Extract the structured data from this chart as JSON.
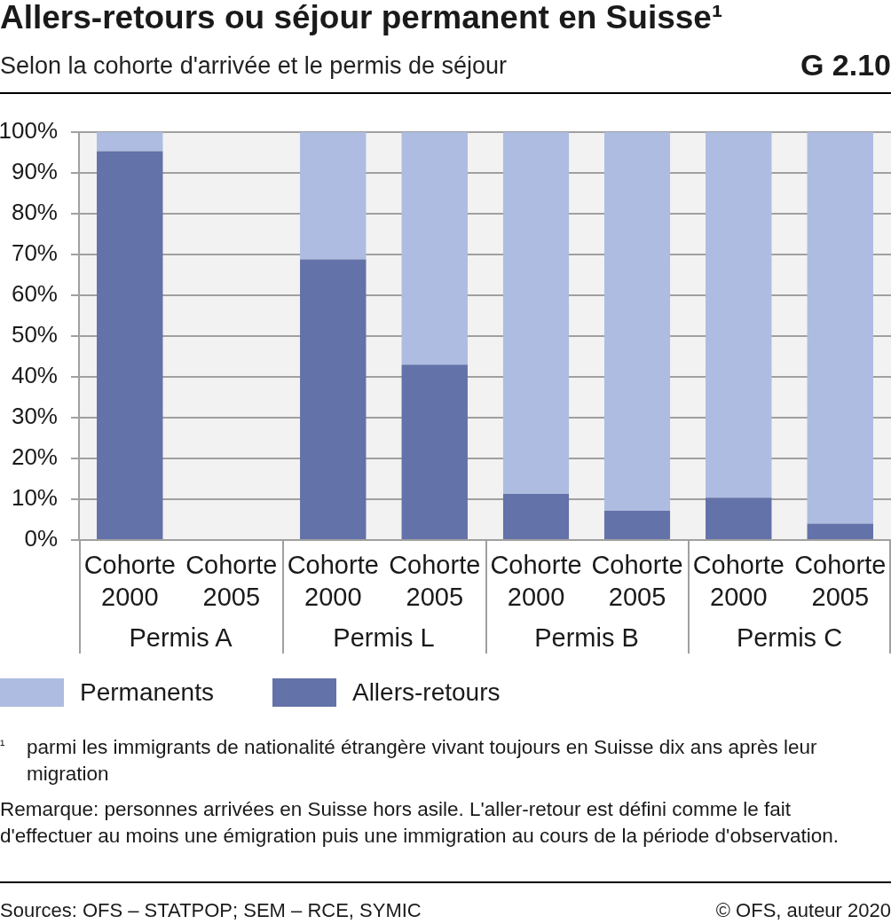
{
  "chart_data": [
    {
      "type": "bar",
      "title": "Allers-retours ou séjour permanent en Suisse¹",
      "subtitle": "Selon la cohorte d'arrivée et le permis de séjour",
      "xlabel": "Permis A",
      "categories": [
        "Cohorte 2000",
        "Cohorte 2005"
      ],
      "stacked": true,
      "series": [
        {
          "name": "Allers-retours",
          "color": "#6372a8",
          "values": [
            95.3,
            null
          ]
        },
        {
          "name": "Permanents",
          "color": "#aebce1",
          "values": [
            4.7,
            null
          ]
        }
      ],
      "ylim": [
        0,
        100
      ],
      "yticks": [
        {
          "value": 0,
          "label": "0%"
        },
        {
          "value": 10,
          "label": "10%"
        },
        {
          "value": 20,
          "label": "20%"
        },
        {
          "value": 30,
          "label": "30%"
        },
        {
          "value": 40,
          "label": "40%"
        },
        {
          "value": 50,
          "label": "50%"
        },
        {
          "value": 60,
          "label": "60%"
        },
        {
          "value": 70,
          "label": "70%"
        },
        {
          "value": 80,
          "label": "80%"
        },
        {
          "value": 90,
          "label": "90%"
        },
        {
          "value": 100,
          "label": "100%"
        }
      ],
      "grid": "y",
      "legend": "bottom",
      "annotations": [
        "G 2.10",
        "¹ parmi les immigrants de nationalité étrangère vivant toujours en Suisse dix ans après leur migration",
        "Remarque: personnes arrivées en Suisse hors asile. L'aller-retour est défini comme le fait d'effectuer au moins une émigration puis une immigration au cours de la période d'observation.",
        "Sources: OFS – STATPOP; SEM – RCE, SYMIC",
        "© OFS, auteur 2020"
      ]
    },
    {
      "type": "bar",
      "xlabel": "Permis L",
      "categories": [
        "Cohorte 2000",
        "Cohorte 2005"
      ],
      "stacked": true,
      "series": [
        {
          "color": "#6372a8",
          "values": [
            68.8,
            43.0
          ]
        },
        {
          "color": "#aebce1",
          "values": [
            31.2,
            57.0
          ]
        }
      ],
      "ylim": [
        0,
        100
      ],
      "yticks": [
        {
          "value": 0,
          "label": null
        },
        {
          "value": 10,
          "label": null
        },
        {
          "value": 20,
          "label": null
        },
        {
          "value": 30,
          "label": null
        },
        {
          "value": 40,
          "label": null
        },
        {
          "value": 50,
          "label": null
        },
        {
          "value": 60,
          "label": null
        },
        {
          "value": 70,
          "label": null
        },
        {
          "value": 80,
          "label": null
        },
        {
          "value": 90,
          "label": null
        },
        {
          "value": 100,
          "label": null
        }
      ],
      "grid": "y",
      "tick_labels": "x"
    },
    {
      "type": "bar",
      "xlabel": "Permis B",
      "categories": [
        "Cohorte 2000",
        "Cohorte 2005"
      ],
      "stacked": true,
      "series": [
        {
          "color": "#6372a8",
          "values": [
            11.3,
            7.2
          ]
        },
        {
          "color": "#aebce1",
          "values": [
            88.7,
            92.8
          ]
        }
      ],
      "ylim": [
        0,
        100
      ],
      "yticks": [
        {
          "value": 0,
          "label": null
        },
        {
          "value": 10,
          "label": null
        },
        {
          "value": 20,
          "label": null
        },
        {
          "value": 30,
          "label": null
        },
        {
          "value": 40,
          "label": null
        },
        {
          "value": 50,
          "label": null
        },
        {
          "value": 60,
          "label": null
        },
        {
          "value": 70,
          "label": null
        },
        {
          "value": 80,
          "label": null
        },
        {
          "value": 90,
          "label": null
        },
        {
          "value": 100,
          "label": null
        }
      ],
      "grid": "y",
      "tick_labels": "x"
    },
    {
      "type": "bar",
      "xlabel": "Permis C",
      "categories": [
        "Cohorte 2000",
        "Cohorte 2005"
      ],
      "stacked": true,
      "series": [
        {
          "color": "#6372a8",
          "values": [
            10.4,
            4.0
          ]
        },
        {
          "color": "#aebce1",
          "values": [
            89.6,
            96.0
          ]
        }
      ],
      "ylim": [
        0,
        100
      ],
      "yticks": [
        {
          "value": 0,
          "label": null
        },
        {
          "value": 10,
          "label": null
        },
        {
          "value": 20,
          "label": null
        },
        {
          "value": 30,
          "label": null
        },
        {
          "value": 40,
          "label": null
        },
        {
          "value": 50,
          "label": null
        },
        {
          "value": 60,
          "label": null
        },
        {
          "value": 70,
          "label": null
        },
        {
          "value": 80,
          "label": null
        },
        {
          "value": 90,
          "label": null
        },
        {
          "value": 100,
          "label": null
        }
      ],
      "grid": "y",
      "tick_labels": "x"
    }
  ]
}
